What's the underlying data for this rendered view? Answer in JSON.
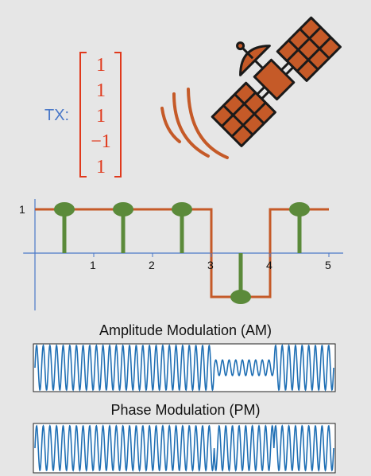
{
  "tx_label": "TX:",
  "tx_vector": [
    "1",
    "1",
    "1",
    "−1",
    "1"
  ],
  "symbols": [
    1,
    1,
    1,
    -1,
    1
  ],
  "chart_data": {
    "type": "line",
    "x_ticks": [
      "1",
      "2",
      "3",
      "4",
      "5"
    ],
    "y_ticks": [
      "1"
    ],
    "stem_points": [
      {
        "x": 0.5,
        "y": 1
      },
      {
        "x": 1.5,
        "y": 1
      },
      {
        "x": 2.5,
        "y": 1
      },
      {
        "x": 3.5,
        "y": -1
      },
      {
        "x": 4.5,
        "y": 1
      }
    ],
    "waveform_steps": [
      {
        "x": 0,
        "y": 1
      },
      {
        "x": 3,
        "y": 1
      },
      {
        "x": 3,
        "y": -1
      },
      {
        "x": 4,
        "y": -1
      },
      {
        "x": 4,
        "y": 1
      },
      {
        "x": 5,
        "y": 1
      }
    ],
    "xlim": [
      -0.2,
      5.25
    ],
    "ylim": [
      -1.4,
      1.2
    ]
  },
  "am_title": "Amplitude Modulation (AM)",
  "pm_title": "Phase Modulation (PM)",
  "am_low_amplitude": 0.35,
  "cycles_per_symbol": 9,
  "colors": {
    "waveform": "#c55a28",
    "stem": "#5b8a3a",
    "axis": "#4a78c8",
    "carrier": "#1f6fb4",
    "vector": "#e0391c",
    "satellite": "#1a1a1a"
  },
  "icons": {
    "satellite": "satellite-icon",
    "signal_waves": "signal-waves-icon"
  }
}
